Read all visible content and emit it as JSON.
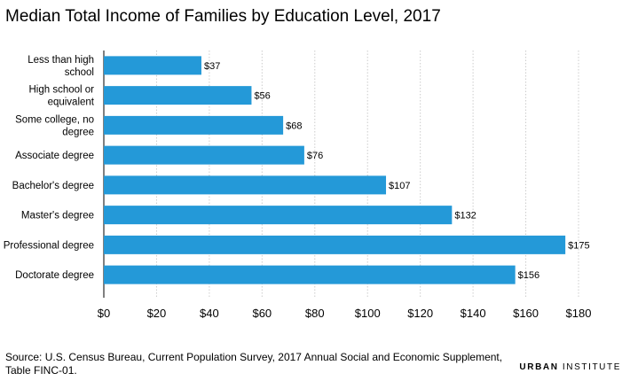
{
  "chart_data": {
    "type": "bar",
    "orientation": "horizontal",
    "title": "Median Total Income of Families by Education Level, 2017",
    "categories": [
      "Less than high school",
      "High school or equivalent",
      "Some college, no degree",
      "Associate degree",
      "Bachelor's degree",
      "Master's degree",
      "Professional degree",
      "Doctorate degree"
    ],
    "category_lines": [
      [
        "Less than high",
        "school"
      ],
      [
        "High school or",
        "equivalent"
      ],
      [
        "Some college, no",
        "degree"
      ],
      [
        "Associate degree"
      ],
      [
        "Bachelor's degree"
      ],
      [
        "Master's degree"
      ],
      [
        "Professional degree"
      ],
      [
        "Doctorate degree"
      ]
    ],
    "values": [
      37,
      56,
      68,
      76,
      107,
      132,
      175,
      156
    ],
    "data_labels": [
      "$37",
      "$56",
      "$68",
      "$76",
      "$107",
      "$132",
      "$175",
      "$156"
    ],
    "xlim": [
      0,
      180
    ],
    "xticks": [
      0,
      20,
      40,
      60,
      80,
      100,
      120,
      140,
      160,
      180
    ],
    "xtick_labels": [
      "$0",
      "$20",
      "$40",
      "$60",
      "$80",
      "$100",
      "$120",
      "$140",
      "$160",
      "$180"
    ],
    "grid": "vertical dashed",
    "bar_color": "#2499D8",
    "grid_color": "#cccccc"
  },
  "source": "Source: U.S. Census Bureau, Current Population Survey, 2017 Annual Social and Economic Supplement, Table FINC-01.",
  "brand": {
    "bold": "URBAN",
    "light": "INSTITUTE"
  }
}
